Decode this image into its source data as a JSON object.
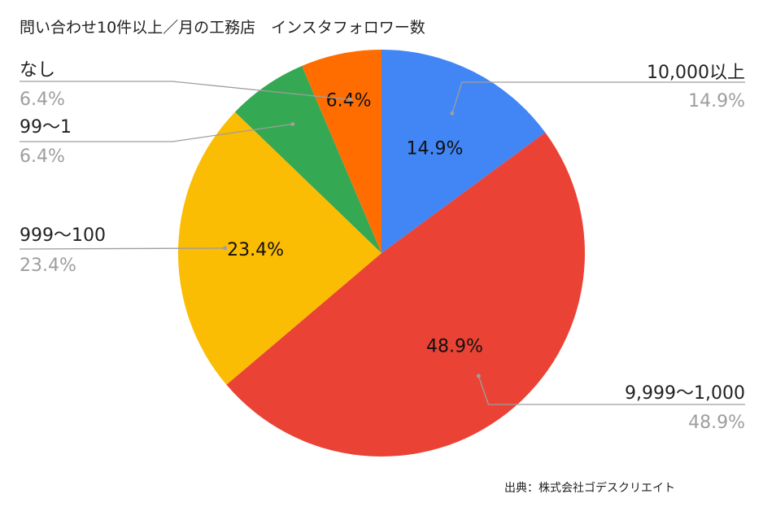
{
  "chart_data": {
    "type": "pie",
    "title": "問い合わせ10件以上／月の工務店　インスタフォロワー数",
    "source": "出典：株式会社ゴデスクリエイト",
    "slices": [
      {
        "label": "10,000以上",
        "value": 14.9,
        "pct_text": "14.9%",
        "color": "#4285f4"
      },
      {
        "label": "9,999〜1,000",
        "value": 48.9,
        "pct_text": "48.9%",
        "color": "#ea4335"
      },
      {
        "label": "999〜100",
        "value": 23.4,
        "pct_text": "23.4%",
        "color": "#fbbc04"
      },
      {
        "label": "99〜1",
        "value": 6.4,
        "pct_text": "6.4%",
        "color": "#34a853"
      },
      {
        "label": "なし",
        "value": 6.4,
        "pct_text": "6.4%",
        "color": "#ff6d01"
      }
    ],
    "legend": "outside labels with leader lines"
  }
}
